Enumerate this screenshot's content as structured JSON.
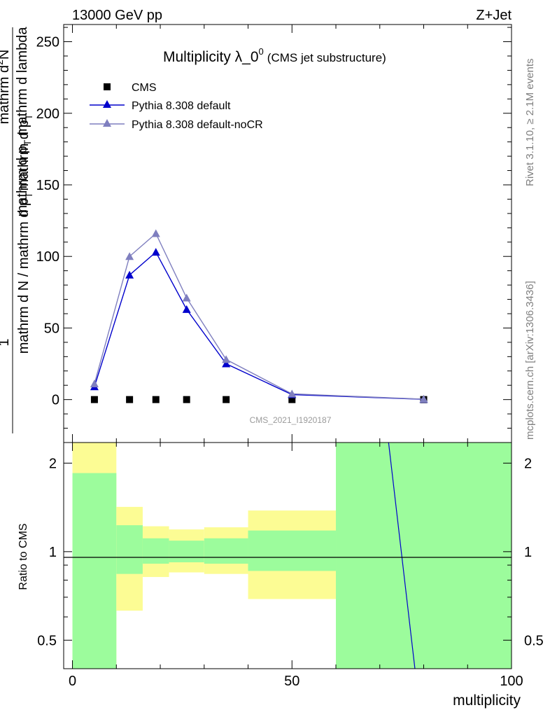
{
  "header": {
    "energy_label": "13000 GeV pp",
    "process_label": "Z+Jet"
  },
  "side_labels": {
    "rivet": "Rivet 3.1.10, ≥ 2.1M events",
    "mcplots": "mcplots.cern.ch [arXiv:1306.3436]"
  },
  "watermark": "CMS_2021_I1920187",
  "colors": {
    "cms": "#000000",
    "pythia_default": "#0000cc",
    "pythia_nocr": "#7f7fbf",
    "band_stat": "#9cfc9c",
    "band_total": "#fcfc94"
  },
  "chart_data": [
    {
      "type": "line",
      "title": "Multiplicity λ_0",
      "title_superscript": "0",
      "subtitle": "(CMS jet substructure)",
      "xlim": [
        -2,
        100
      ],
      "ylim": [
        -30,
        262
      ],
      "yticks": [
        "0",
        "50",
        "100",
        "150",
        "200",
        "250"
      ],
      "ylabel_lines": {
        "numerator": "1",
        "denominator": "mathrm d N / mathrm d p_T mathrm d p_T",
        "right": "mathrm d^2N",
        "right_denominator": "mathrm d p_T mathrm d p_T mathrm d lambda"
      },
      "ylabel": {
        "frac_numerator": "1",
        "frac_denominator": "mathrm d N / mathrm d p",
        "frac_denominator_sub": "T",
        "frac_denominator_tail": "mathrm d p",
        "frac_denominator_tail_sub": "T",
        "second_numerator": "mathrm d",
        "second_numerator_sup": "2",
        "second_numerator_tail": "N",
        "second_denominator": "mathrm d p",
        "second_denominator_sub": "T",
        "second_denominator_tail": " mathrm d lambda"
      },
      "legend_position": "top-left",
      "series": [
        {
          "name": "CMS",
          "marker": "square",
          "x": [
            5,
            13,
            19,
            26,
            35,
            50,
            80
          ],
          "y": [
            0,
            0,
            0,
            0,
            0,
            0,
            0
          ]
        },
        {
          "name": "Pythia 8.308 default",
          "marker": "triangle",
          "x": [
            5,
            13,
            19,
            26,
            35,
            50,
            80
          ],
          "y": [
            9,
            87,
            103,
            63,
            25,
            3.5,
            0.2
          ]
        },
        {
          "name": "Pythia 8.308 default-noCR",
          "marker": "triangle",
          "x": [
            5,
            13,
            19,
            26,
            35,
            50,
            80
          ],
          "y": [
            11,
            100,
            116,
            71,
            28,
            4,
            0.3
          ]
        }
      ]
    },
    {
      "type": "area",
      "ylabel": "Ratio to CMS",
      "xlabel": "multiplicity",
      "xlim": [
        -2,
        100
      ],
      "ylim": [
        0.4,
        2.35
      ],
      "y_scale": "log",
      "xticks": [
        "0",
        "50",
        "100"
      ],
      "yticks": [
        "0.5",
        "1",
        "2"
      ],
      "bins": [
        {
          "x0": 0,
          "x1": 10,
          "stat_lo": 0.4,
          "stat_hi": 1.85,
          "tot_lo": 0.4,
          "tot_hi": 2.35
        },
        {
          "x0": 10,
          "x1": 16,
          "stat_lo": 0.84,
          "stat_hi": 1.23,
          "tot_lo": 0.63,
          "tot_hi": 1.42
        },
        {
          "x0": 16,
          "x1": 22,
          "stat_lo": 0.91,
          "stat_hi": 1.11,
          "tot_lo": 0.82,
          "tot_hi": 1.22
        },
        {
          "x0": 22,
          "x1": 30,
          "stat_lo": 0.92,
          "stat_hi": 1.09,
          "tot_lo": 0.85,
          "tot_hi": 1.19
        },
        {
          "x0": 30,
          "x1": 40,
          "stat_lo": 0.91,
          "stat_hi": 1.11,
          "tot_lo": 0.84,
          "tot_hi": 1.21
        },
        {
          "x0": 40,
          "x1": 60,
          "stat_lo": 0.86,
          "stat_hi": 1.18,
          "tot_lo": 0.69,
          "tot_hi": 1.38
        },
        {
          "x0": 60,
          "x1": 100,
          "stat_lo": 0.4,
          "stat_hi": 2.35,
          "tot_lo": 0.4,
          "tot_hi": 2.35
        }
      ],
      "series": [
        {
          "name": "Pythia 8.308 default",
          "x": [
            72,
            78
          ],
          "y": [
            2.35,
            0.4
          ]
        }
      ]
    }
  ]
}
